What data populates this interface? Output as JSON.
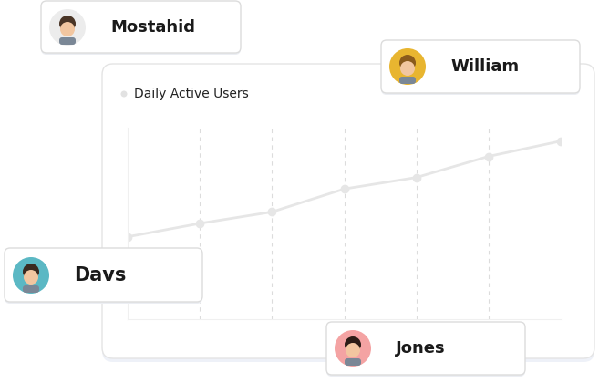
{
  "chart_data": {
    "type": "line",
    "title": "Daily Active Users",
    "x": [
      0,
      1,
      2,
      3,
      4,
      5,
      6
    ],
    "values": [
      43,
      50,
      56,
      68,
      74,
      85,
      93
    ],
    "xlim": [
      0,
      6
    ],
    "xticks": [
      1,
      2,
      3,
      4,
      5
    ],
    "ylim": [
      0,
      100
    ],
    "yticks": [],
    "grid": true,
    "tick_labels": false,
    "color": "#e6e6e6",
    "marker": "o"
  },
  "user_cards": [
    "Mostahid",
    "William",
    "Davs",
    "Jones"
  ]
}
